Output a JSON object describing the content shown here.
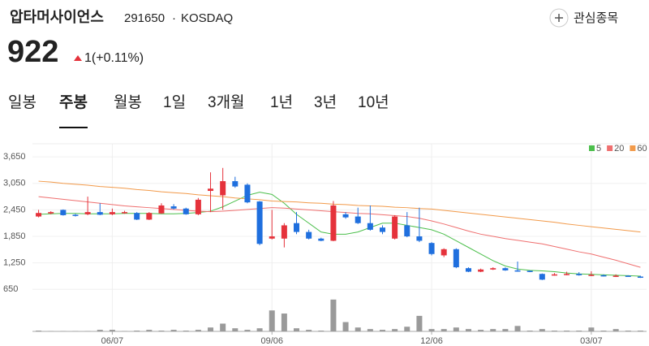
{
  "header": {
    "name": "압타머사이언스",
    "code": "291650",
    "separator": "·",
    "market": "KOSDAQ",
    "watch_label": "관심종목",
    "price": 922,
    "change": "1(+0.11%)"
  },
  "tabs": [
    "일봉",
    "주봉",
    "월봉",
    "1일",
    "3개월",
    "1년",
    "3년",
    "10년"
  ],
  "selected_tab": 1,
  "chart_data": {
    "type": "candlestick",
    "categories": [
      null,
      null,
      null,
      null,
      null,
      null,
      "06/07",
      null,
      null,
      null,
      null,
      null,
      null,
      null,
      null,
      null,
      null,
      null,
      null,
      "09/06",
      null,
      null,
      null,
      null,
      null,
      null,
      null,
      null,
      null,
      null,
      null,
      null,
      "12/06",
      null,
      null,
      null,
      null,
      null,
      null,
      null,
      null,
      null,
      null,
      null,
      null,
      "03/07",
      null,
      null,
      null,
      null
    ],
    "open": [
      2300,
      2370,
      2450,
      2340,
      2350,
      2400,
      2350,
      2380,
      2380,
      2230,
      2370,
      2530,
      2480,
      2350,
      2880,
      2780,
      3100,
      3020,
      2640,
      1800,
      1800,
      2150,
      1950,
      1800,
      1750,
      2350,
      2300,
      2150,
      2050,
      1800,
      2100,
      1850,
      1700,
      1420,
      1560,
      1130,
      1050,
      1100,
      1130,
      1080,
      1070,
      1000,
      970,
      980,
      1000,
      960,
      970,
      940,
      960,
      940
    ],
    "high": [
      2450,
      2420,
      2460,
      2360,
      2750,
      2600,
      2480,
      2430,
      2400,
      2400,
      2600,
      2580,
      2500,
      2720,
      3300,
      3400,
      3200,
      3050,
      2650,
      2450,
      2150,
      2400,
      2000,
      1820,
      2650,
      2400,
      2500,
      2550,
      2100,
      2330,
      2400,
      2500,
      1720,
      1580,
      1580,
      1150,
      1120,
      1150,
      1150,
      1280,
      1080,
      1010,
      1020,
      1050,
      1040,
      1060,
      990,
      990,
      970,
      960
    ],
    "low": [
      2280,
      2350,
      2320,
      2300,
      2330,
      2330,
      2330,
      2360,
      2220,
      2220,
      2360,
      2460,
      2340,
      2330,
      2400,
      2450,
      2950,
      2600,
      1650,
      1780,
      1600,
      1900,
      1780,
      1740,
      1740,
      2250,
      2130,
      1980,
      1900,
      1780,
      1830,
      1720,
      1420,
      1380,
      1130,
      1040,
      1040,
      1090,
      1070,
      1050,
      1040,
      860,
      960,
      970,
      960,
      950,
      940,
      930,
      940,
      910
    ],
    "close": [
      2380,
      2400,
      2330,
      2320,
      2400,
      2340,
      2400,
      2400,
      2230,
      2380,
      2550,
      2480,
      2350,
      2680,
      2930,
      3100,
      2980,
      2620,
      1680,
      1850,
      2100,
      1950,
      1800,
      1750,
      2550,
      2280,
      2150,
      2000,
      1950,
      2300,
      1850,
      1750,
      1450,
      1560,
      1150,
      1050,
      1100,
      1130,
      1080,
      1060,
      1050,
      870,
      990,
      1000,
      970,
      980,
      950,
      960,
      950,
      922
    ],
    "volume": [
      1,
      0.5,
      0.5,
      0.5,
      0.5,
      2,
      2,
      0.5,
      1,
      2,
      1,
      2,
      1,
      2,
      5,
      10,
      4,
      2,
      4,
      27,
      23,
      4,
      2,
      1,
      41,
      12,
      5,
      3,
      2,
      3,
      6,
      20,
      3,
      3,
      5,
      3,
      2,
      3,
      3,
      7,
      1,
      3,
      1,
      1,
      1,
      5,
      1,
      3,
      1,
      1
    ],
    "up_color": "#e5323b",
    "down_color": "#1f6fde",
    "volume_color": "#9a9a9a",
    "ylim": [
      600,
      3800
    ],
    "yticks": [
      {
        "value": 650,
        "label": "650"
      },
      {
        "value": 1250,
        "label": "1,250"
      },
      {
        "value": 1850,
        "label": "1,850"
      },
      {
        "value": 2450,
        "label": "2,450"
      },
      {
        "value": 3050,
        "label": "3,050"
      },
      {
        "value": 3650,
        "label": "3,650"
      }
    ],
    "vlim": [
      0,
      45
    ],
    "grid": true,
    "legend": "top-right",
    "series": [
      {
        "name": "5",
        "color": "#4cbf4c",
        "values": [
          2350,
          2360,
          2370,
          2370,
          2360,
          2360,
          2360,
          2370,
          2370,
          2370,
          2360,
          2360,
          2370,
          2390,
          2420,
          2520,
          2650,
          2780,
          2850,
          2800,
          2600,
          2350,
          2150,
          1950,
          1900,
          1900,
          1950,
          2050,
          2150,
          2150,
          2100,
          2050,
          2000,
          1900,
          1750,
          1600,
          1450,
          1300,
          1180,
          1110,
          1080,
          1070,
          1050,
          1020,
          1000,
          990,
          980,
          970,
          960,
          950
        ]
      },
      {
        "name": "20",
        "color": "#ef6f6f",
        "values": [
          2750,
          2720,
          2690,
          2660,
          2630,
          2600,
          2570,
          2540,
          2520,
          2500,
          2480,
          2460,
          2440,
          2420,
          2410,
          2420,
          2440,
          2460,
          2480,
          2500,
          2490,
          2470,
          2450,
          2430,
          2410,
          2390,
          2370,
          2360,
          2340,
          2320,
          2300,
          2260,
          2200,
          2130,
          2050,
          1970,
          1900,
          1850,
          1800,
          1760,
          1720,
          1680,
          1620,
          1560,
          1500,
          1450,
          1380,
          1310,
          1230,
          1150
        ]
      },
      {
        "name": "60",
        "color": "#f29a4a",
        "values": [
          3100,
          3080,
          3050,
          3030,
          3010,
          2980,
          2960,
          2940,
          2910,
          2890,
          2860,
          2840,
          2820,
          2790,
          2770,
          2750,
          2720,
          2700,
          2680,
          2650,
          2640,
          2630,
          2610,
          2600,
          2580,
          2570,
          2550,
          2540,
          2530,
          2510,
          2500,
          2480,
          2470,
          2440,
          2410,
          2380,
          2350,
          2320,
          2290,
          2260,
          2230,
          2200,
          2170,
          2130,
          2100,
          2070,
          2040,
          2010,
          1980,
          1950
        ]
      }
    ]
  }
}
